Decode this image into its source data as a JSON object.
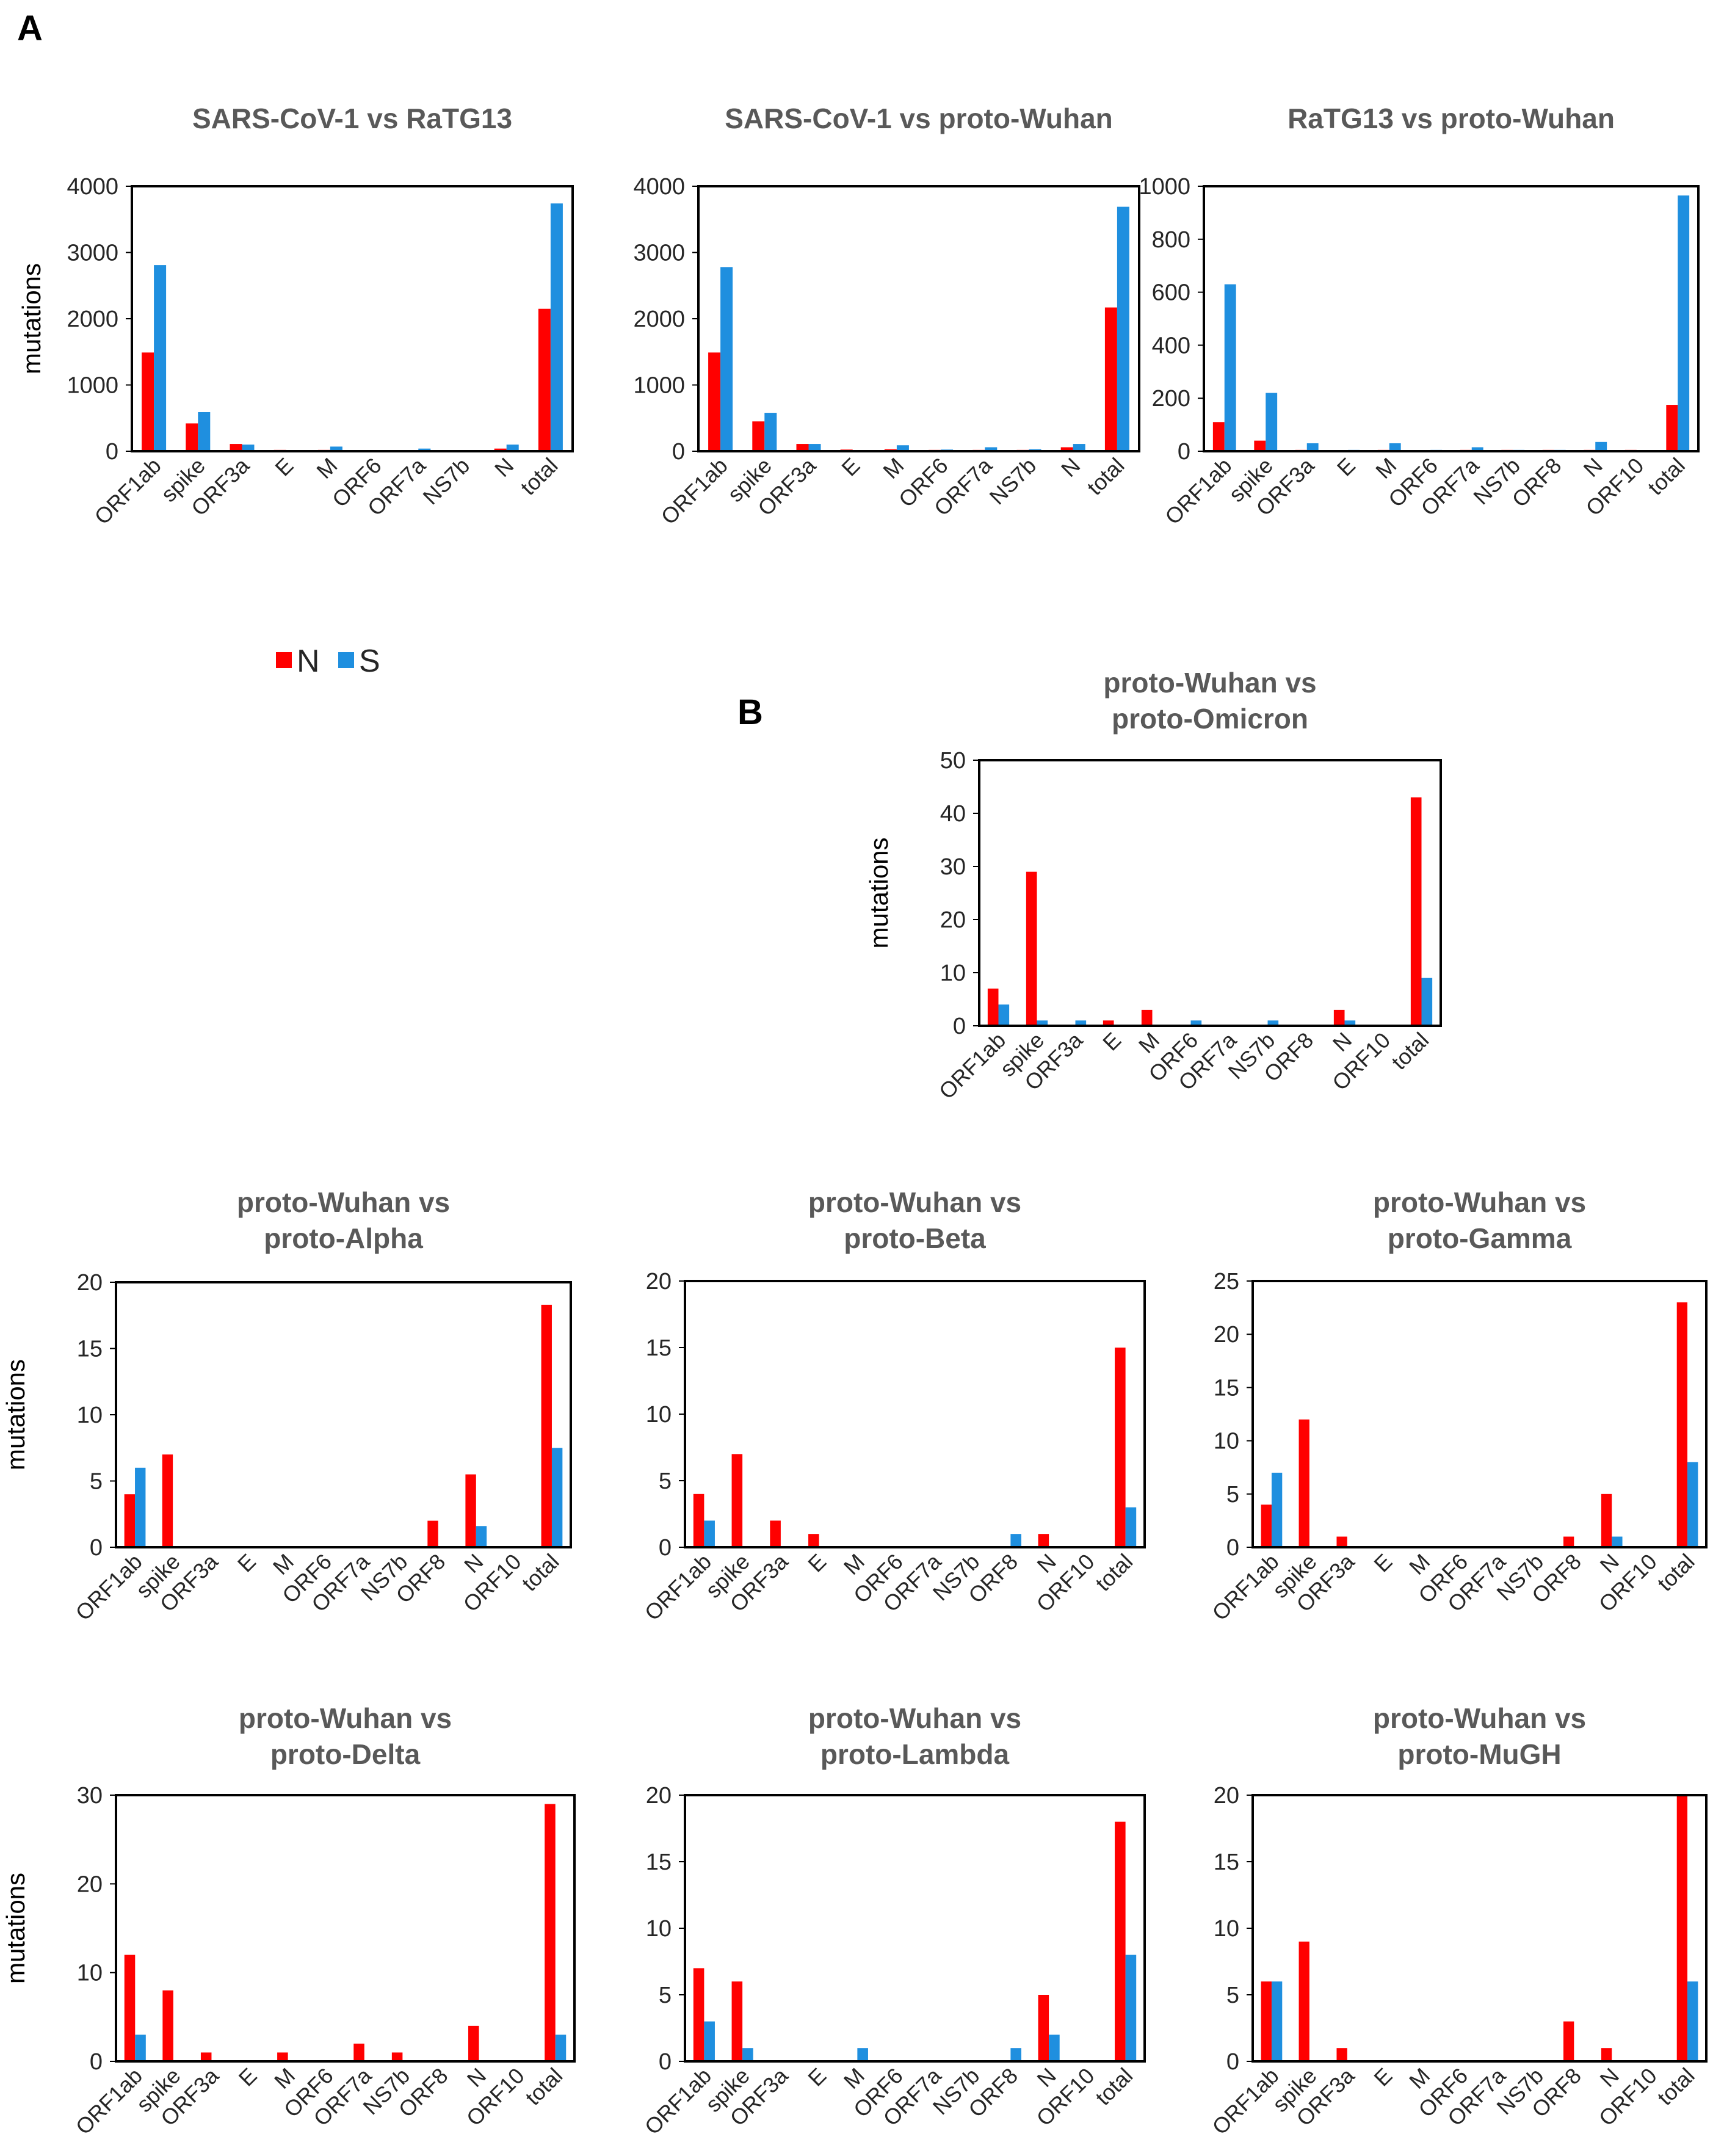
{
  "panel_labels": {
    "a": "A",
    "b": "B"
  },
  "legend": [
    {
      "label": "N",
      "color": "#ff0000"
    },
    {
      "label": "S",
      "color": "#1f8fdf"
    }
  ],
  "colors": {
    "N": "#ff0000",
    "S": "#1f8fdf"
  },
  "chart_data": [
    {
      "type": "bar",
      "title": "SARS-CoV-1 vs RaTG13",
      "ylabel": "mutations",
      "ylim": [
        0,
        4000
      ],
      "yticks": [
        0,
        1000,
        2000,
        3000,
        4000
      ],
      "categories": [
        "ORF1ab",
        "spike",
        "ORF3a",
        "E",
        "M",
        "ORF6",
        "ORF7a",
        "NS7b",
        "N",
        "total"
      ],
      "series": [
        {
          "name": "N",
          "values": [
            1490,
            420,
            110,
            20,
            20,
            10,
            10,
            10,
            40,
            2150
          ]
        },
        {
          "name": "S",
          "values": [
            2810,
            590,
            100,
            10,
            70,
            15,
            40,
            15,
            100,
            3740
          ]
        }
      ]
    },
    {
      "type": "bar",
      "title": "SARS-CoV-1 vs proto-Wuhan",
      "ylabel": "",
      "ylim": [
        0,
        4000
      ],
      "yticks": [
        0,
        1000,
        2000,
        3000,
        4000
      ],
      "categories": [
        "ORF1ab",
        "spike",
        "ORF3a",
        "E",
        "M",
        "ORF6",
        "ORF7a",
        "NS7b",
        "N",
        "total"
      ],
      "series": [
        {
          "name": "N",
          "values": [
            1490,
            450,
            110,
            25,
            30,
            20,
            20,
            20,
            60,
            2170
          ]
        },
        {
          "name": "S",
          "values": [
            2780,
            580,
            110,
            10,
            90,
            25,
            60,
            30,
            110,
            3690
          ]
        }
      ]
    },
    {
      "type": "bar",
      "title": "RaTG13 vs proto-Wuhan",
      "ylabel": "",
      "ylim": [
        0,
        1000
      ],
      "yticks": [
        0,
        200,
        400,
        600,
        800,
        1000
      ],
      "categories": [
        "ORF1ab",
        "spike",
        "ORF3a",
        "E",
        "M",
        "ORF6",
        "ORF7a",
        "NS7b",
        "ORF8",
        "N",
        "ORF10",
        "total"
      ],
      "series": [
        {
          "name": "N",
          "values": [
            110,
            40,
            5,
            0,
            5,
            0,
            5,
            5,
            5,
            5,
            5,
            175
          ]
        },
        {
          "name": "S",
          "values": [
            630,
            220,
            30,
            5,
            30,
            5,
            15,
            5,
            5,
            35,
            0,
            965
          ]
        }
      ]
    },
    {
      "type": "bar",
      "title": "proto-Wuhan vs proto-Omicron",
      "title_lines": [
        "proto-Wuhan vs",
        "proto-Omicron"
      ],
      "ylabel": "mutations",
      "ylim": [
        0,
        50
      ],
      "yticks": [
        0,
        10,
        20,
        30,
        40,
        50
      ],
      "categories": [
        "ORF1ab",
        "spike",
        "ORF3a",
        "E",
        "M",
        "ORF6",
        "ORF7a",
        "NS7b",
        "ORF8",
        "N",
        "ORF10",
        "total"
      ],
      "series": [
        {
          "name": "N",
          "values": [
            7,
            29,
            0,
            1,
            3,
            0,
            0,
            0,
            0,
            3,
            0,
            43
          ]
        },
        {
          "name": "S",
          "values": [
            4,
            1,
            1,
            0,
            0,
            1,
            0,
            1,
            0,
            1,
            0,
            9
          ]
        }
      ]
    },
    {
      "type": "bar",
      "title": "proto-Wuhan vs proto-Alpha",
      "title_lines": [
        "proto-Wuhan vs",
        "proto-Alpha"
      ],
      "ylabel": "mutations",
      "ylim": [
        0,
        20
      ],
      "yticks": [
        0,
        5,
        10,
        15,
        20
      ],
      "categories": [
        "ORF1ab",
        "spike",
        "ORF3a",
        "E",
        "M",
        "ORF6",
        "ORF7a",
        "NS7b",
        "ORF8",
        "N",
        "ORF10",
        "total"
      ],
      "series": [
        {
          "name": "N",
          "values": [
            4,
            7,
            0,
            0,
            0,
            0,
            0,
            0,
            2,
            5.5,
            0,
            18.3
          ]
        },
        {
          "name": "S",
          "values": [
            6,
            0,
            0,
            0,
            0,
            0,
            0,
            0,
            0,
            1.6,
            0,
            7.5
          ]
        }
      ]
    },
    {
      "type": "bar",
      "title": "proto-Wuhan vs proto-Beta",
      "title_lines": [
        "proto-Wuhan vs",
        "proto-Beta"
      ],
      "ylabel": "",
      "ylim": [
        0,
        20
      ],
      "yticks": [
        0,
        5,
        10,
        15,
        20
      ],
      "categories": [
        "ORF1ab",
        "spike",
        "ORF3a",
        "E",
        "M",
        "ORF6",
        "ORF7a",
        "NS7b",
        "ORF8",
        "N",
        "ORF10",
        "total"
      ],
      "series": [
        {
          "name": "N",
          "values": [
            4,
            7,
            2,
            1,
            0,
            0,
            0,
            0,
            0,
            1,
            0,
            15
          ]
        },
        {
          "name": "S",
          "values": [
            2,
            0,
            0,
            0,
            0,
            0,
            0,
            0,
            1,
            0,
            0,
            3
          ]
        }
      ]
    },
    {
      "type": "bar",
      "title": "proto-Wuhan vs proto-Gamma",
      "title_lines": [
        "proto-Wuhan vs",
        "proto-Gamma"
      ],
      "ylabel": "",
      "ylim": [
        0,
        25
      ],
      "yticks": [
        0,
        5,
        10,
        15,
        20,
        25
      ],
      "categories": [
        "ORF1ab",
        "spike",
        "ORF3a",
        "E",
        "M",
        "ORF6",
        "ORF7a",
        "NS7b",
        "ORF8",
        "N",
        "ORF10",
        "total"
      ],
      "series": [
        {
          "name": "N",
          "values": [
            4,
            12,
            1,
            0,
            0,
            0,
            0,
            0,
            1,
            5,
            0,
            23
          ]
        },
        {
          "name": "S",
          "values": [
            7,
            0,
            0,
            0,
            0,
            0,
            0,
            0,
            0,
            1,
            0,
            8
          ]
        }
      ]
    },
    {
      "type": "bar",
      "title": "proto-Wuhan vs proto-Delta",
      "title_lines": [
        "proto-Wuhan vs",
        "proto-Delta"
      ],
      "ylabel": "mutations",
      "ylim": [
        0,
        30
      ],
      "yticks": [
        0,
        10,
        20,
        30
      ],
      "categories": [
        "ORF1ab",
        "spike",
        "ORF3a",
        "E",
        "M",
        "ORF6",
        "ORF7a",
        "NS7b",
        "ORF8",
        "N",
        "ORF10",
        "total"
      ],
      "series": [
        {
          "name": "N",
          "values": [
            12,
            8,
            1,
            0,
            1,
            0,
            2,
            1,
            0,
            4,
            0,
            29
          ]
        },
        {
          "name": "S",
          "values": [
            3,
            0,
            0,
            0,
            0,
            0,
            0,
            0,
            0,
            0,
            0,
            3
          ]
        }
      ]
    },
    {
      "type": "bar",
      "title": "proto-Wuhan vs proto-Lambda",
      "title_lines": [
        "proto-Wuhan vs",
        "proto-Lambda"
      ],
      "ylabel": "",
      "ylim": [
        0,
        20
      ],
      "yticks": [
        0,
        5,
        10,
        15,
        20
      ],
      "categories": [
        "ORF1ab",
        "spike",
        "ORF3a",
        "E",
        "M",
        "ORF6",
        "ORF7a",
        "NS7b",
        "ORF8",
        "N",
        "ORF10",
        "total"
      ],
      "series": [
        {
          "name": "N",
          "values": [
            7,
            6,
            0,
            0,
            0,
            0,
            0,
            0,
            0,
            5,
            0,
            18
          ]
        },
        {
          "name": "S",
          "values": [
            3,
            1,
            0,
            0,
            1,
            0,
            0,
            0,
            1,
            2,
            0,
            8
          ]
        }
      ]
    },
    {
      "type": "bar",
      "title": "proto-Wuhan vs proto-MuGH",
      "title_lines": [
        "proto-Wuhan vs",
        "proto-MuGH"
      ],
      "ylabel": "",
      "ylim": [
        0,
        20
      ],
      "yticks": [
        0,
        5,
        10,
        15,
        20
      ],
      "categories": [
        "ORF1ab",
        "spike",
        "ORF3a",
        "E",
        "M",
        "ORF6",
        "ORF7a",
        "NS7b",
        "ORF8",
        "N",
        "ORF10",
        "total"
      ],
      "series": [
        {
          "name": "N",
          "values": [
            6,
            9,
            1,
            0,
            0,
            0,
            0,
            0,
            3,
            1,
            0,
            20
          ]
        },
        {
          "name": "S",
          "values": [
            6,
            0,
            0,
            0,
            0,
            0,
            0,
            0,
            0,
            0,
            0,
            6
          ]
        }
      ]
    }
  ]
}
